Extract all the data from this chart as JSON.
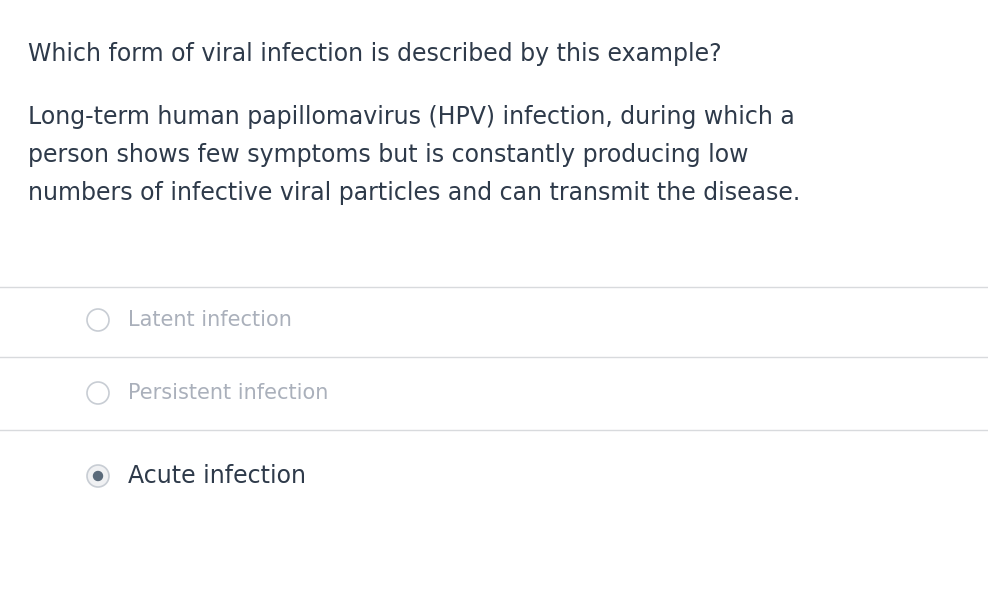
{
  "background_color": "#ffffff",
  "question": "Which form of viral infection is described by this example?",
  "body_lines": [
    "Long-term human papillomavirus (HPV) infection, during which a",
    "person shows few symptoms but is constantly producing low",
    "numbers of infective viral particles and can transmit the disease."
  ],
  "options": [
    {
      "label": "Latent infection",
      "selected": false
    },
    {
      "label": "Persistent infection",
      "selected": false
    },
    {
      "label": "Acute infection",
      "selected": true
    }
  ],
  "question_color": "#2e3a4a",
  "body_color": "#2e3a4a",
  "unselected_label_color": "#aab0bb",
  "selected_label_color": "#2e3a4a",
  "radio_unselected_edge": "#c8cdd4",
  "radio_unselected_face": "#ffffff",
  "radio_selected_outer_face": "#f0f1f3",
  "radio_selected_outer_edge": "#c8cdd4",
  "radio_selected_inner": "#5a6a7a",
  "separator_color": "#d8dadd",
  "question_fontsize": 17,
  "body_fontsize": 17,
  "option_fontsize": 15,
  "fig_width": 9.88,
  "fig_height": 6.14,
  "dpi": 100
}
